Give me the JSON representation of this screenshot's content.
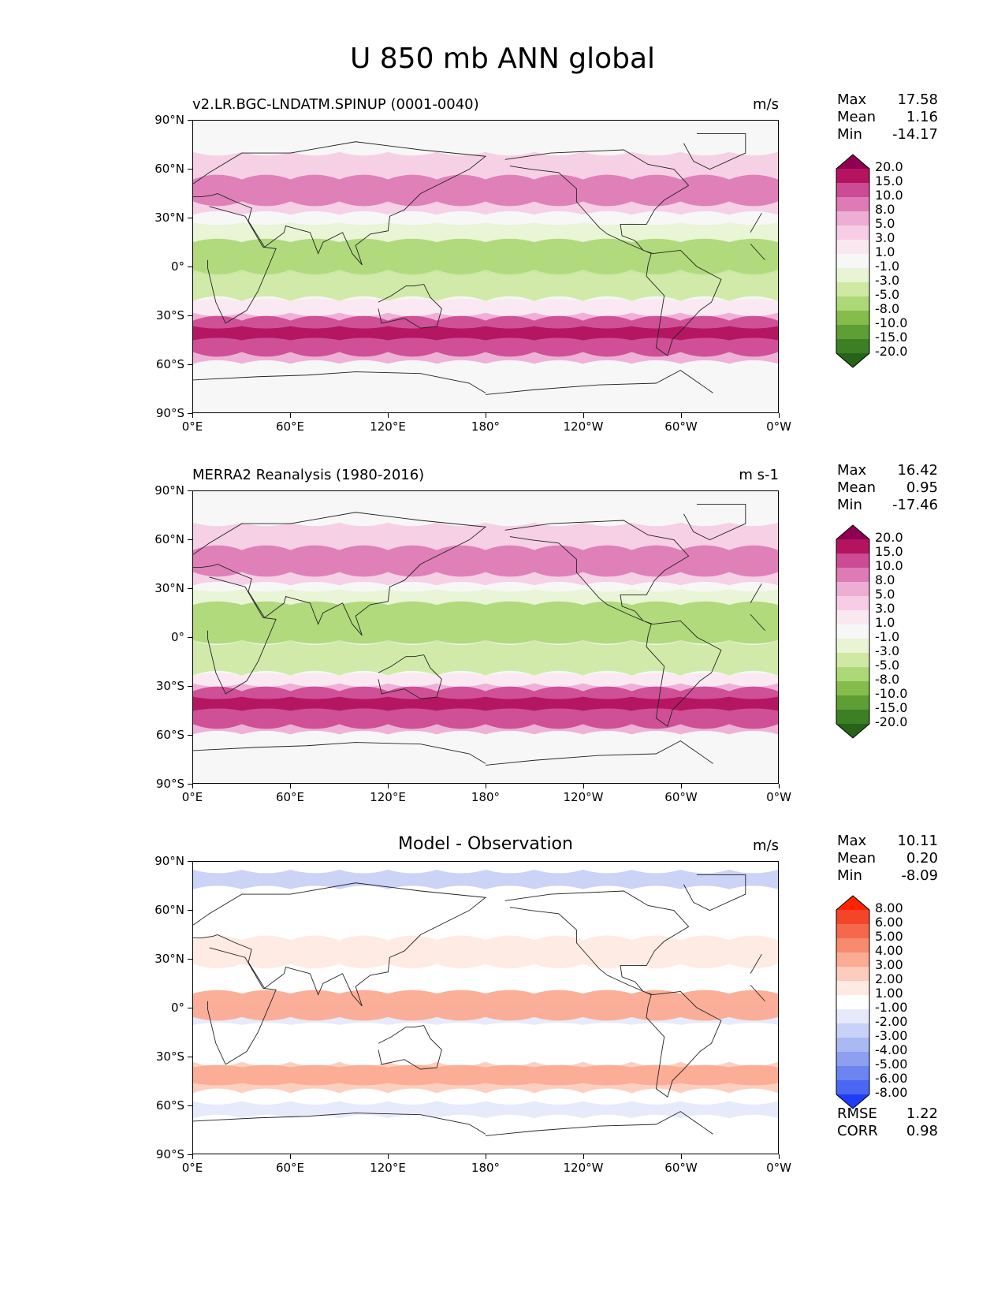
{
  "title": "U 850 mb ANN global",
  "x_ticks": [
    "0°E",
    "60°E",
    "120°E",
    "180°",
    "120°W",
    "60°W",
    "0°W"
  ],
  "y_ticks": [
    "90°N",
    "60°N",
    "30°N",
    "0°",
    "30°S",
    "60°S",
    "90°S"
  ],
  "panels": [
    {
      "title_left": "v2.LR.BGC-LNDATM.SPINUP (0001-0040)",
      "title_center": "",
      "units": "m/s",
      "stats": [
        {
          "label": "Max",
          "value": "17.58"
        },
        {
          "label": "Mean",
          "value": "1.16"
        },
        {
          "label": "Min",
          "value": "-14.17"
        }
      ],
      "colorbar_labels": [
        "20.0",
        "15.0",
        "10.0",
        "8.0",
        "5.0",
        "3.0",
        "1.0",
        "-1.0",
        "-3.0",
        "-5.0",
        "-8.0",
        "-10.0",
        "-15.0",
        "-20.0"
      ],
      "colorbar_colors": [
        "#8e0152",
        "#b3135f",
        "#cc4b94",
        "#de7bb6",
        "#eeadd5",
        "#f6cde4",
        "#fae8f1",
        "#f7f7f7",
        "#e8f4d4",
        "#cfe9a4",
        "#add877",
        "#86bc4c",
        "#5e9e34",
        "#3c7f24",
        "#276419"
      ],
      "metrics": []
    },
    {
      "title_left": "MERRA2 Reanalysis (1980-2016)",
      "title_center": "",
      "units": "m s-1",
      "stats": [
        {
          "label": "Max",
          "value": "16.42"
        },
        {
          "label": "Mean",
          "value": "0.95"
        },
        {
          "label": "Min",
          "value": "-17.46"
        }
      ],
      "colorbar_labels": [
        "20.0",
        "15.0",
        "10.0",
        "8.0",
        "5.0",
        "3.0",
        "1.0",
        "-1.0",
        "-3.0",
        "-5.0",
        "-8.0",
        "-10.0",
        "-15.0",
        "-20.0"
      ],
      "colorbar_colors": [
        "#8e0152",
        "#b3135f",
        "#cc4b94",
        "#de7bb6",
        "#eeadd5",
        "#f6cde4",
        "#fae8f1",
        "#f7f7f7",
        "#e8f4d4",
        "#cfe9a4",
        "#add877",
        "#86bc4c",
        "#5e9e34",
        "#3c7f24",
        "#276419"
      ],
      "metrics": []
    },
    {
      "title_left": "",
      "title_center": "Model - Observation",
      "units": "m/s",
      "stats": [
        {
          "label": "Max",
          "value": "10.11"
        },
        {
          "label": "Mean",
          "value": "0.20"
        },
        {
          "label": "Min",
          "value": "-8.09"
        }
      ],
      "colorbar_labels": [
        "8.00",
        "6.00",
        "5.00",
        "4.00",
        "3.00",
        "2.00",
        "1.00",
        "-1.00",
        "-2.00",
        "-3.00",
        "-4.00",
        "-5.00",
        "-6.00",
        "-8.00"
      ],
      "colorbar_colors": [
        "#ff2400",
        "#f4452a",
        "#f5684b",
        "#f88a6e",
        "#fbab93",
        "#fdccbd",
        "#feeae2",
        "#ffffff",
        "#e5e9fb",
        "#c8d1f7",
        "#aab8f4",
        "#8c9ff1",
        "#6c84f0",
        "#4a66f2",
        "#1f3cf8"
      ],
      "metrics": [
        {
          "label": "RMSE",
          "value": "1.22"
        },
        {
          "label": "CORR",
          "value": "0.98"
        }
      ]
    }
  ]
}
